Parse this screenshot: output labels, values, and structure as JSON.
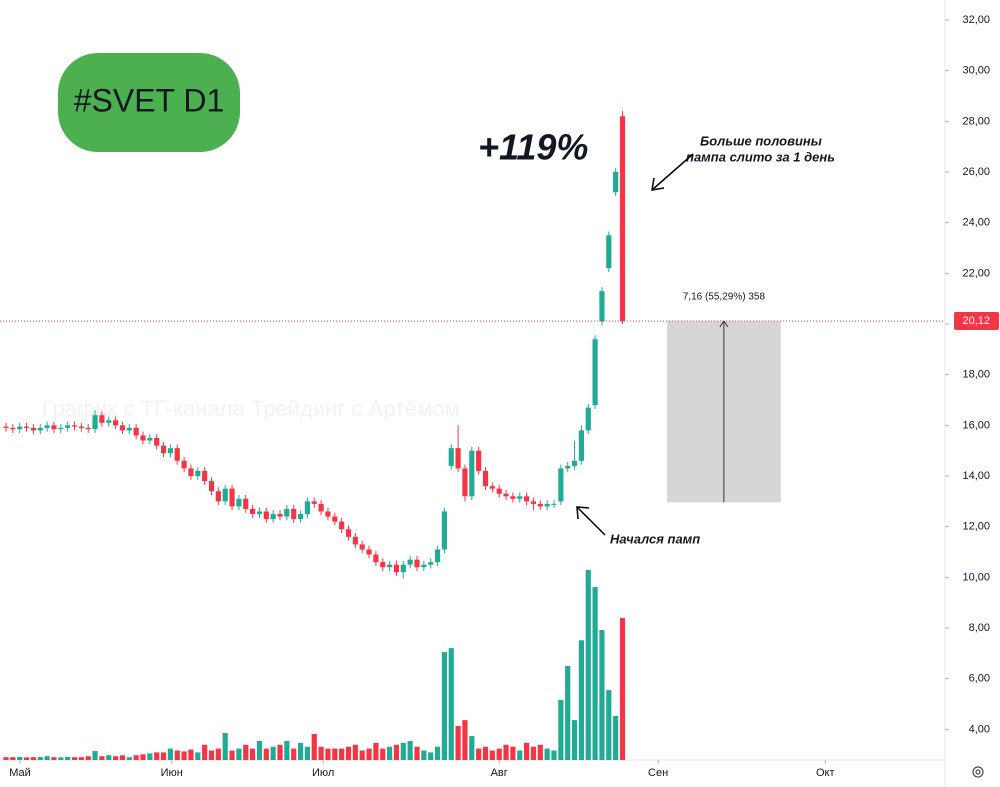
{
  "chart_data": {
    "type": "candlestick",
    "title": "#SVET D1",
    "watermark": "График с ТГ-канала Трейдинг с Артёмом",
    "up_color": "#22ab94",
    "down_color": "#f23645",
    "x": [
      0,
      1,
      2,
      3,
      4,
      5,
      6,
      7,
      8,
      9,
      10,
      11,
      12,
      13,
      14,
      15,
      16,
      17,
      18,
      19,
      20,
      21,
      22,
      23,
      24,
      25,
      26,
      27,
      28,
      29,
      30,
      31,
      32,
      33,
      34,
      35,
      36,
      37,
      38,
      39,
      40,
      41,
      42,
      43,
      44,
      45,
      46,
      47,
      48,
      49,
      50,
      51,
      52,
      53,
      54,
      55,
      56,
      57,
      58,
      59,
      60,
      61,
      62,
      63,
      64,
      65,
      66,
      67,
      68,
      69,
      70,
      71,
      72,
      73,
      74,
      75,
      76,
      77,
      78,
      79,
      80,
      81,
      82,
      83,
      84,
      85,
      86,
      87,
      88,
      89,
      90
    ],
    "open": [
      15.95,
      15.9,
      15.85,
      15.95,
      15.9,
      15.8,
      15.9,
      16.0,
      15.85,
      15.9,
      16.0,
      15.95,
      15.9,
      15.85,
      16.4,
      16.1,
      16.2,
      16.0,
      15.8,
      15.9,
      15.6,
      15.4,
      15.5,
      15.2,
      14.9,
      15.1,
      14.6,
      14.3,
      14.0,
      14.2,
      13.8,
      13.4,
      13.0,
      13.5,
      12.8,
      13.1,
      12.7,
      12.5,
      12.6,
      12.3,
      12.5,
      12.4,
      12.7,
      12.3,
      12.5,
      13.0,
      12.9,
      12.6,
      12.4,
      12.2,
      11.9,
      11.6,
      11.3,
      11.1,
      10.9,
      10.6,
      10.4,
      10.5,
      10.2,
      10.5,
      10.7,
      10.4,
      10.5,
      10.6,
      11.1,
      14.4,
      15.1,
      14.3,
      13.2,
      15.0,
      14.2,
      13.6,
      13.5,
      13.3,
      13.2,
      13.1,
      13.2,
      13.0,
      12.9,
      12.8,
      12.9,
      13.0,
      14.3,
      14.4,
      14.6,
      15.8,
      16.8,
      20.1,
      22.2,
      25.2,
      28.2
    ],
    "high": [
      16.1,
      16.05,
      16.1,
      16.1,
      16.05,
      16.05,
      16.15,
      16.15,
      16.05,
      16.15,
      16.15,
      16.1,
      16.05,
      16.6,
      16.55,
      16.35,
      16.35,
      16.15,
      16.05,
      16.05,
      15.75,
      15.65,
      15.65,
      15.35,
      15.25,
      15.25,
      14.75,
      14.45,
      14.35,
      14.35,
      13.95,
      13.55,
      13.65,
      13.65,
      13.25,
      13.25,
      12.85,
      12.75,
      12.75,
      12.65,
      12.65,
      12.85,
      12.85,
      12.65,
      13.15,
      13.15,
      13.05,
      12.75,
      12.55,
      12.35,
      12.05,
      11.75,
      11.45,
      11.25,
      11.05,
      10.75,
      10.65,
      10.65,
      10.65,
      10.85,
      10.85,
      10.65,
      10.75,
      11.25,
      12.75,
      15.25,
      16.0,
      14.45,
      15.15,
      15.15,
      14.35,
      13.75,
      13.65,
      13.45,
      13.35,
      13.35,
      13.35,
      13.15,
      13.05,
      13.05,
      13.05,
      14.45,
      14.55,
      15.4,
      16.0,
      16.85,
      19.55,
      21.45,
      23.65,
      26.15,
      28.4
    ],
    "low": [
      15.75,
      15.7,
      15.7,
      15.75,
      15.65,
      15.65,
      15.75,
      15.7,
      15.7,
      15.75,
      15.8,
      15.75,
      15.7,
      15.7,
      15.95,
      15.95,
      15.85,
      15.65,
      15.65,
      15.45,
      15.25,
      15.25,
      15.05,
      14.75,
      14.75,
      14.45,
      14.15,
      13.85,
      13.85,
      13.65,
      13.25,
      12.85,
      12.85,
      12.65,
      12.65,
      12.55,
      12.35,
      12.35,
      12.15,
      12.15,
      12.25,
      12.25,
      12.15,
      12.15,
      12.35,
      12.75,
      12.45,
      12.25,
      12.05,
      11.75,
      11.45,
      11.15,
      10.95,
      10.75,
      10.45,
      10.25,
      10.25,
      10.05,
      9.95,
      10.35,
      10.25,
      10.25,
      10.35,
      10.45,
      10.95,
      14.25,
      14.15,
      13.0,
      13.05,
      14.05,
      13.45,
      13.35,
      13.15,
      13.05,
      12.95,
      12.95,
      12.85,
      12.65,
      12.65,
      12.65,
      12.75,
      12.85,
      14.15,
      14.25,
      14.45,
      15.65,
      16.65,
      19.95,
      22.05,
      25.05,
      20.0
    ],
    "close": [
      15.9,
      15.85,
      15.95,
      15.9,
      15.8,
      15.9,
      16.0,
      15.85,
      15.9,
      16.0,
      15.95,
      15.9,
      15.85,
      16.4,
      16.1,
      16.2,
      16.0,
      15.8,
      15.9,
      15.6,
      15.4,
      15.5,
      15.2,
      14.9,
      15.1,
      14.6,
      14.3,
      14.0,
      14.2,
      13.8,
      13.4,
      13.0,
      13.5,
      12.8,
      13.1,
      12.7,
      12.5,
      12.6,
      12.3,
      12.5,
      12.4,
      12.7,
      12.3,
      12.5,
      13.0,
      12.9,
      12.6,
      12.4,
      12.2,
      11.9,
      11.6,
      11.3,
      11.1,
      10.9,
      10.6,
      10.4,
      10.5,
      10.2,
      10.5,
      10.7,
      10.4,
      10.5,
      10.6,
      11.1,
      12.6,
      15.1,
      14.3,
      13.2,
      15.0,
      14.2,
      13.6,
      13.5,
      13.3,
      13.2,
      13.1,
      13.2,
      13.0,
      12.9,
      12.8,
      12.9,
      12.9,
      14.3,
      14.4,
      14.6,
      15.8,
      16.7,
      19.4,
      21.3,
      23.5,
      26.0,
      20.12
    ],
    "volume": [
      1.5,
      1.5,
      1.6,
      1.4,
      1.5,
      1.6,
      2,
      1.5,
      1.4,
      1.6,
      1.5,
      1.5,
      2,
      4.7,
      2,
      2.5,
      2,
      2.5,
      1.5,
      2.5,
      3,
      3.5,
      4,
      4,
      6,
      5,
      4.5,
      5.5,
      4,
      8,
      5,
      6,
      14.2,
      5,
      6,
      8,
      6,
      10,
      6,
      7,
      8,
      10,
      6,
      9,
      7,
      13.7,
      7,
      6,
      6,
      6,
      7,
      8,
      5,
      6,
      9,
      6,
      7,
      8,
      9,
      10,
      7,
      5,
      4,
      7,
      56.8,
      58.9,
      17.9,
      21,
      12.6,
      6,
      7,
      5,
      6,
      8,
      7,
      5,
      9,
      7,
      8,
      6,
      5,
      31.6,
      49.5,
      21,
      63,
      100,
      91,
      68.4,
      36.8,
      23.2,
      74.7
    ],
    "volume_lim": [
      0,
      100
    ],
    "xlim": [
      -0.876,
      137.08
    ],
    "xticks": [
      {
        "value": 2.04,
        "label": "Май"
      },
      {
        "value": 24.2,
        "label": "Июн"
      },
      {
        "value": 46.3,
        "label": "Июл"
      },
      {
        "value": 72.0,
        "label": "Авг"
      },
      {
        "value": 95.2,
        "label": "Сен"
      },
      {
        "value": 119.6,
        "label": "Окт"
      }
    ],
    "ylim": [
      2.79,
      32.79
    ],
    "yticks": [
      {
        "value": 4,
        "label": "4,00"
      },
      {
        "value": 6,
        "label": "6,00"
      },
      {
        "value": 8,
        "label": "8,00"
      },
      {
        "value": 10,
        "label": "10,00"
      },
      {
        "value": 12,
        "label": "12,00"
      },
      {
        "value": 14,
        "label": "14,00"
      },
      {
        "value": 16,
        "label": "16,00"
      },
      {
        "value": 18,
        "label": "18,00"
      },
      {
        "value": 20,
        "label": "20,00"
      },
      {
        "value": 22,
        "label": "22,00"
      },
      {
        "value": 24,
        "label": "24,00"
      },
      {
        "value": 26,
        "label": "26,00"
      },
      {
        "value": 28,
        "label": "28,00"
      },
      {
        "value": 30,
        "label": "30,00"
      },
      {
        "value": 32,
        "label": "32,00"
      }
    ],
    "last_price": {
      "value": 20.12,
      "label": "20,12"
    },
    "gain_label": "+119%",
    "annotations": [
      {
        "lines": [
          "Больше половины",
          "пампа слито за 1 день"
        ]
      },
      {
        "lines": [
          "Начался памп"
        ]
      }
    ],
    "measure": {
      "label": "7,16 (55,29%) 358",
      "from": 12.96,
      "to": 20.12,
      "x": [
        96.5,
        113.1
      ]
    }
  }
}
